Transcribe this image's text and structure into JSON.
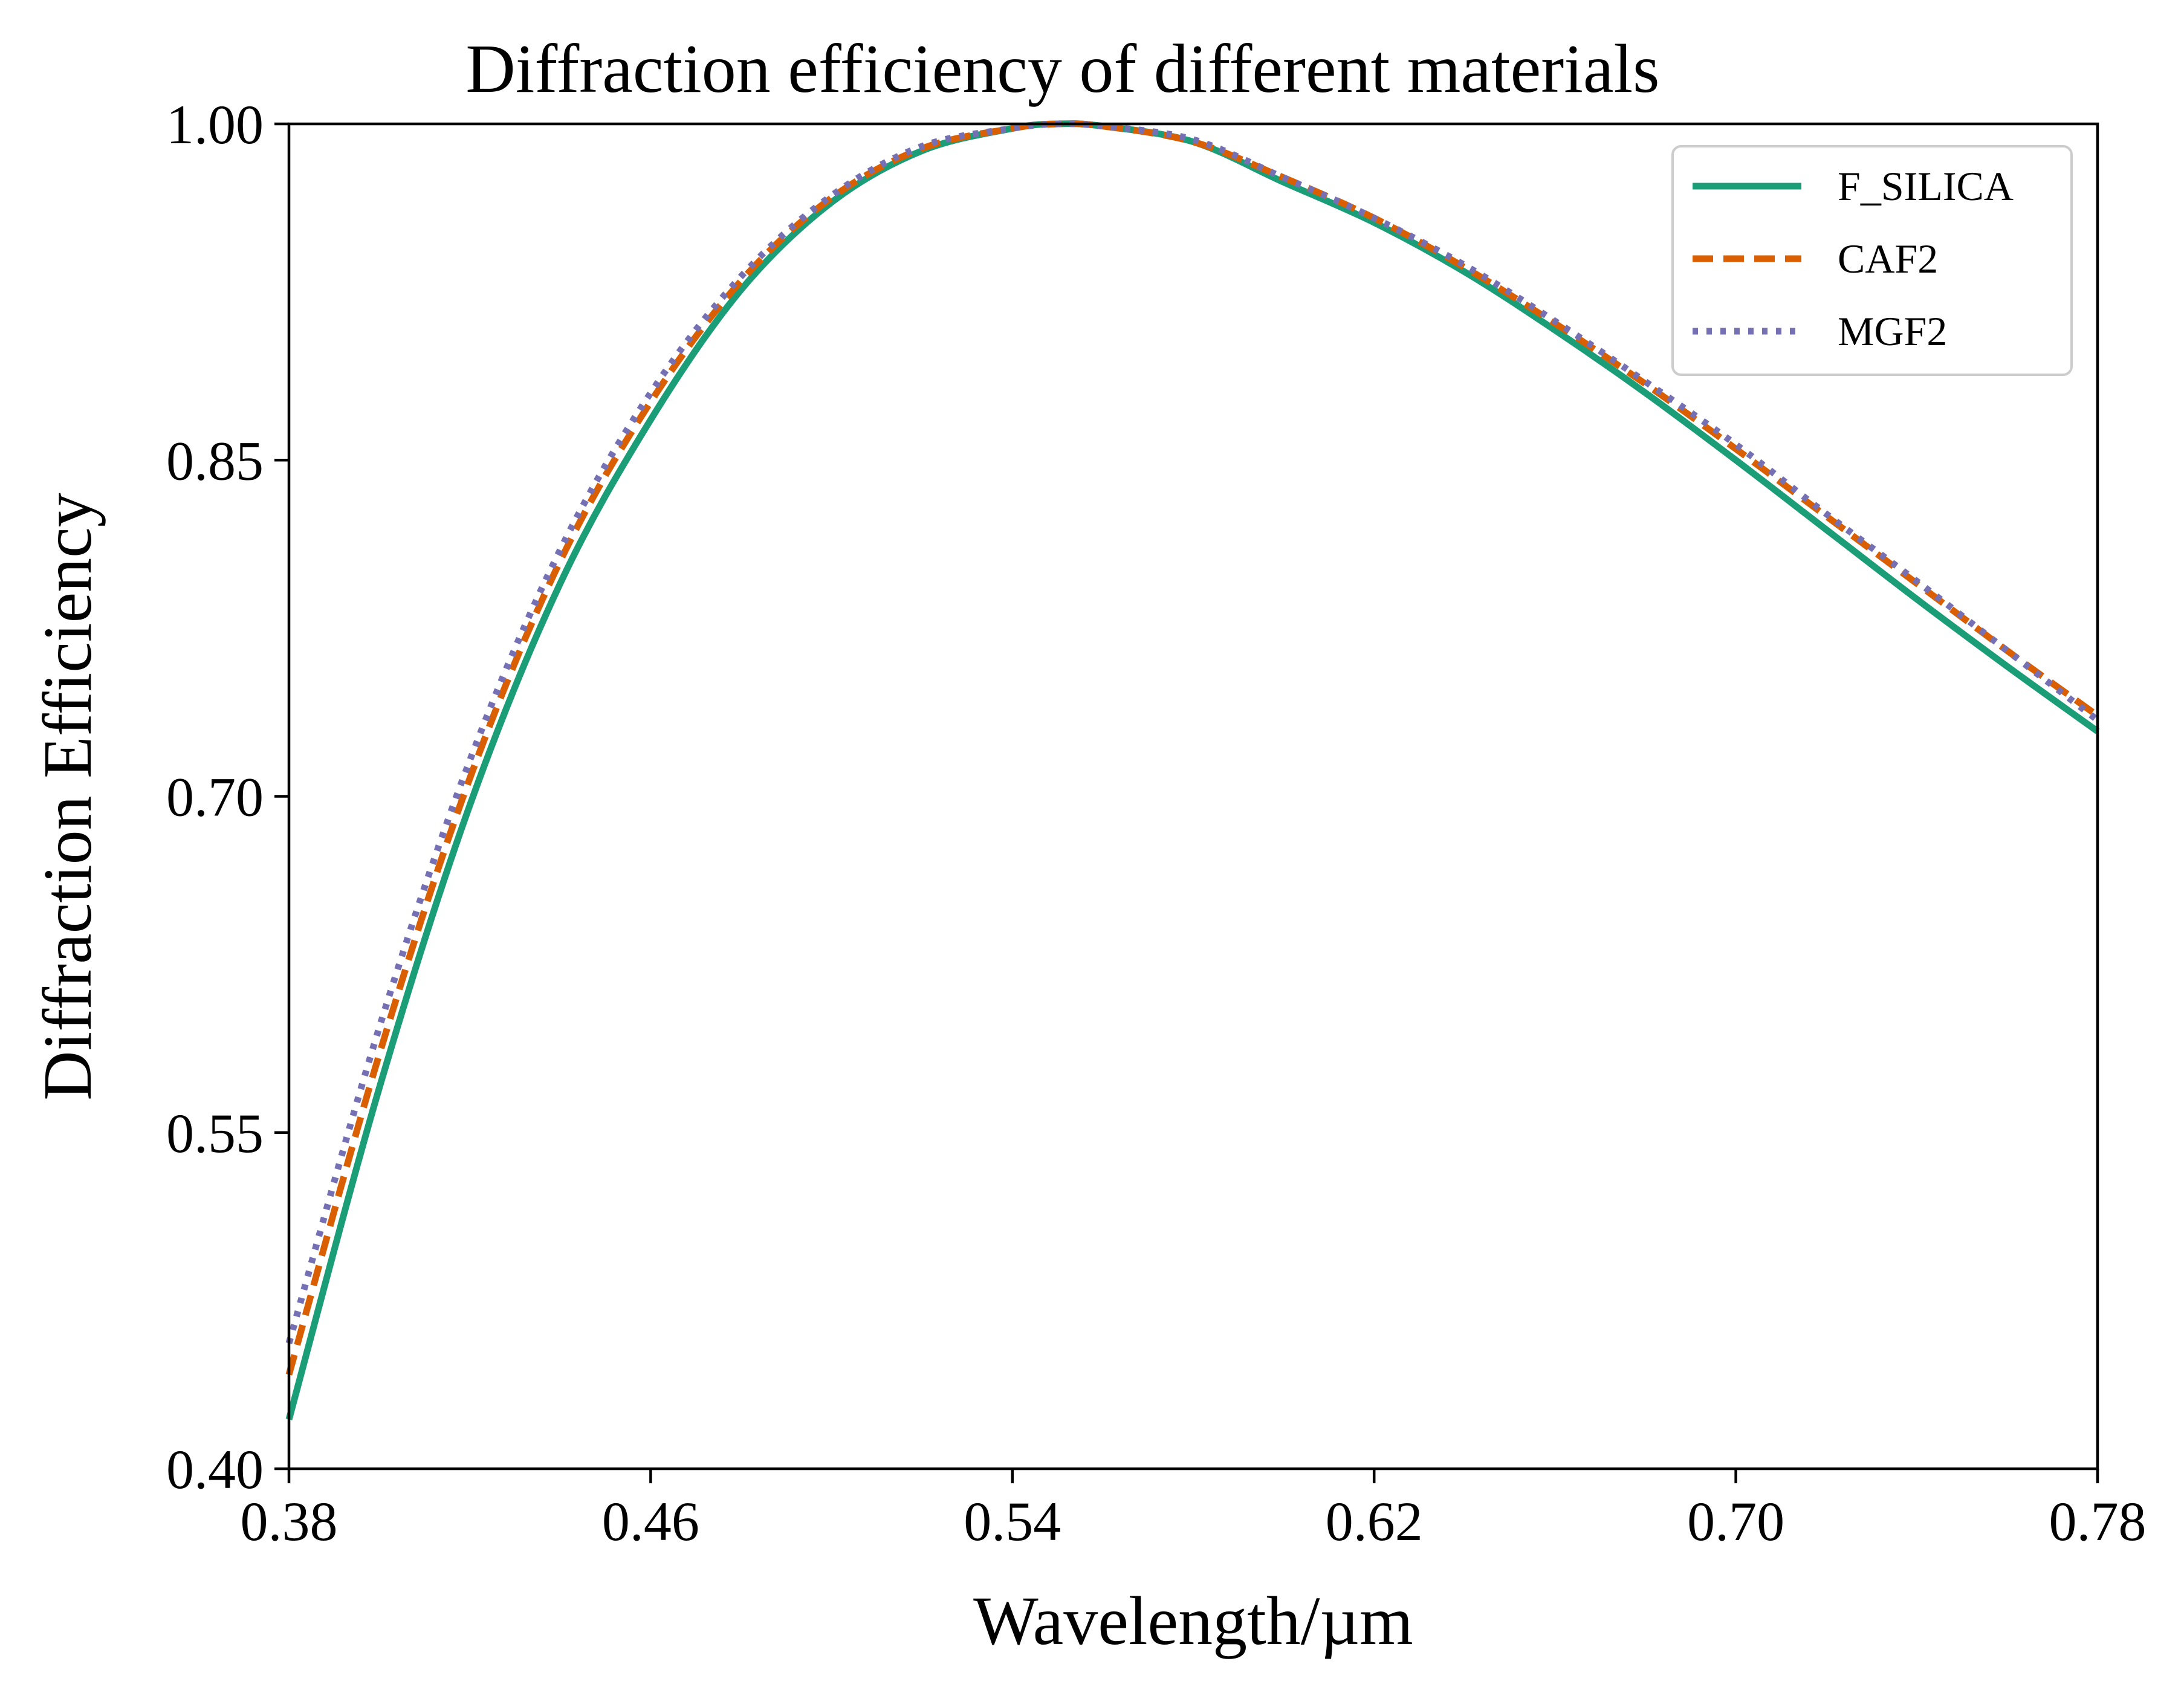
{
  "chart_data": {
    "type": "line",
    "title": "Diffraction efficiency of different materials",
    "xlabel": "Wavelength/µm",
    "ylabel": "Diffraction Efficiency",
    "xlim": [
      0.38,
      0.78
    ],
    "ylim": [
      0.4,
      1.0
    ],
    "xticks": [
      "0.38",
      "0.46",
      "0.54",
      "0.62",
      "0.70",
      "0.78"
    ],
    "yticks": [
      "0.40",
      "0.55",
      "0.70",
      "0.85",
      "1.00"
    ],
    "grid": false,
    "legend_position": "top-right",
    "x": [
      0.38,
      0.4,
      0.42,
      0.44,
      0.46,
      0.48,
      0.5,
      0.52,
      0.54,
      0.55,
      0.56,
      0.58,
      0.6,
      0.62,
      0.64,
      0.66,
      0.68,
      0.7,
      0.72,
      0.74,
      0.76,
      0.78
    ],
    "series": [
      {
        "name": "F_SILICA",
        "color": "#1b9e77",
        "style": "solid",
        "values": [
          0.422,
          0.57,
          0.696,
          0.795,
          0.868,
          0.926,
          0.965,
          0.988,
          0.998,
          1.0,
          0.999,
          0.992,
          0.974,
          0.956,
          0.934,
          0.908,
          0.88,
          0.85,
          0.819,
          0.788,
          0.758,
          0.729
        ]
      },
      {
        "name": "CAF2",
        "color": "#d95f02",
        "style": "dashed",
        "values": [
          0.442,
          0.585,
          0.708,
          0.805,
          0.876,
          0.93,
          0.967,
          0.989,
          0.998,
          1.0,
          0.999,
          0.992,
          0.976,
          0.958,
          0.936,
          0.911,
          0.884,
          0.855,
          0.825,
          0.795,
          0.765,
          0.736
        ]
      },
      {
        "name": "MGF2",
        "color": "#7570b3",
        "style": "dotted",
        "values": [
          0.456,
          0.597,
          0.716,
          0.81,
          0.88,
          0.932,
          0.968,
          0.99,
          0.998,
          1.0,
          0.999,
          0.993,
          0.976,
          0.958,
          0.937,
          0.912,
          0.885,
          0.857,
          0.826,
          0.796,
          0.765,
          0.734
        ]
      }
    ]
  }
}
